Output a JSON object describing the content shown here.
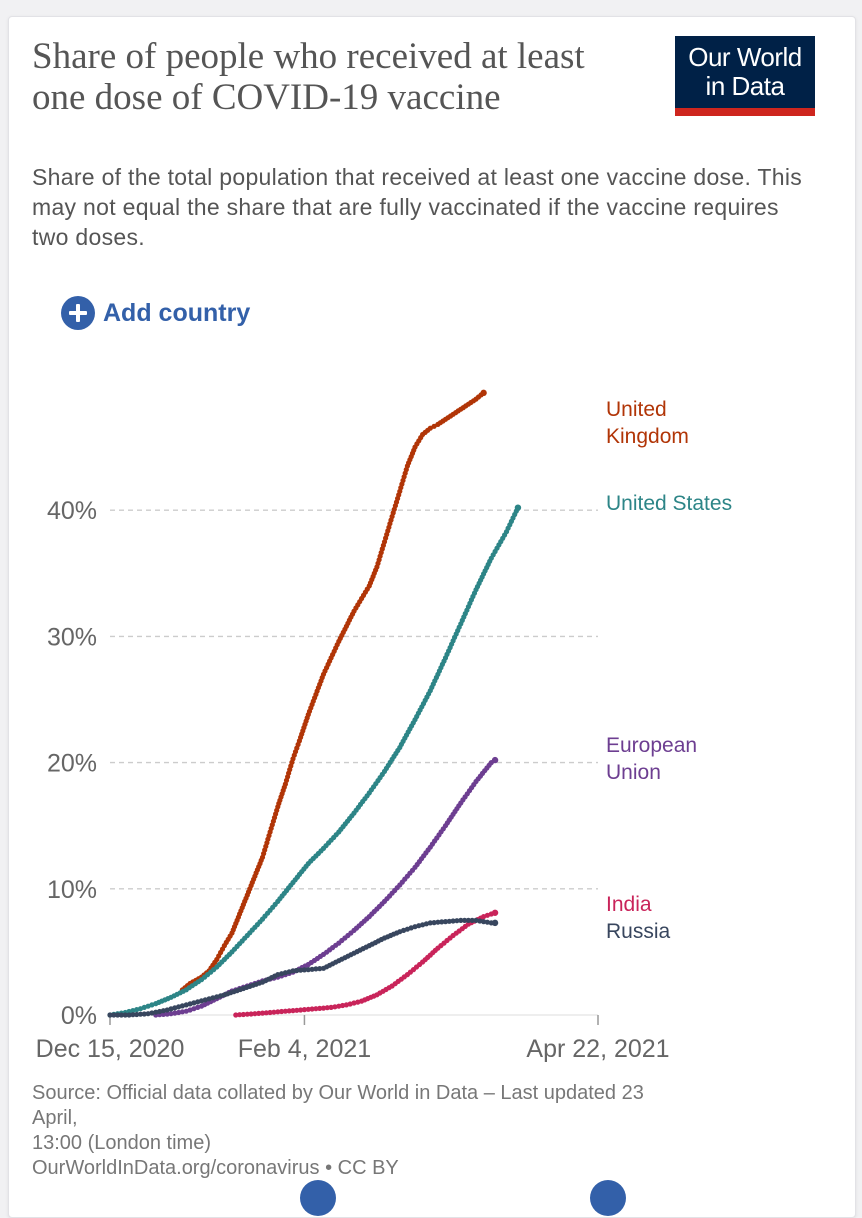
{
  "header": {
    "title": "Share of people who received at least one dose of COVID-19 vaccine",
    "subtitle": "Share of the total population that received at least one vaccine dose. This may not equal the share that are fully vaccinated if the vaccine requires two doses.",
    "logo_line1": "Our World",
    "logo_line2": "in Data",
    "logo_icon": "owid-logo"
  },
  "controls": {
    "add_country_label": "Add country",
    "add_icon": "plus-circle-icon"
  },
  "footer": {
    "source_line1": "Source: Official data collated by Our World in Data – Last updated 23",
    "source_line2": "April,",
    "source_line3": "13:00 (London time)",
    "source_url": "OurWorldInData.org/coronavirus",
    "license": "• CC BY"
  },
  "colors": {
    "uk": "#b13507",
    "us": "#2d8587",
    "eu": "#6d3e91",
    "india": "#c9245a",
    "russia": "#38465e",
    "grid": "#cccccc",
    "axis_text": "#666666",
    "accent": "#3360a9",
    "logo_bg": "#002147",
    "logo_stripe": "#ce261e"
  },
  "chart_data": {
    "type": "line",
    "title": "Share of people who received at least one dose of COVID-19 vaccine",
    "xlabel": "",
    "ylabel": "",
    "x_range_days": [
      0,
      128
    ],
    "x_ticks": [
      {
        "day": 0,
        "label": "Dec 15, 2020"
      },
      {
        "day": 51,
        "label": "Feb 4, 2021"
      },
      {
        "day": 128,
        "label": "Apr 22, 2021"
      }
    ],
    "ylim": [
      0,
      50
    ],
    "y_ticks": [
      {
        "value": 0,
        "label": "0%"
      },
      {
        "value": 10,
        "label": "10%"
      },
      {
        "value": 20,
        "label": "20%"
      },
      {
        "value": 30,
        "label": "30%"
      },
      {
        "value": 40,
        "label": "40%"
      }
    ],
    "grid": true,
    "series": [
      {
        "key": "uk",
        "name": "United Kingdom",
        "label_lines": [
          "United",
          "Kingdom"
        ],
        "color": "#b13507",
        "points": [
          [
            19,
            2
          ],
          [
            21,
            2.5
          ],
          [
            24,
            3
          ],
          [
            26,
            3.5
          ],
          [
            28,
            4.4
          ],
          [
            30,
            5.5
          ],
          [
            32,
            6.5
          ],
          [
            34,
            8
          ],
          [
            36,
            9.5
          ],
          [
            38,
            11
          ],
          [
            40,
            12.5
          ],
          [
            42,
            14.5
          ],
          [
            44,
            16.5
          ],
          [
            46,
            18.3
          ],
          [
            48,
            20.3
          ],
          [
            50,
            22
          ],
          [
            52,
            23.8
          ],
          [
            54,
            25.4
          ],
          [
            56,
            27
          ],
          [
            58,
            28.3
          ],
          [
            60,
            29.6
          ],
          [
            62,
            30.8
          ],
          [
            64,
            32
          ],
          [
            66,
            33
          ],
          [
            68,
            34
          ],
          [
            70,
            35.5
          ],
          [
            72,
            37.5
          ],
          [
            74,
            39.5
          ],
          [
            76,
            41.5
          ],
          [
            78,
            43.5
          ],
          [
            80,
            45
          ],
          [
            82,
            46
          ],
          [
            84,
            46.5
          ],
          [
            86,
            46.8
          ],
          [
            88,
            47.2
          ],
          [
            90,
            47.6
          ],
          [
            92,
            48
          ],
          [
            94,
            48.4
          ],
          [
            96,
            48.8
          ],
          [
            98,
            49.3
          ]
        ]
      },
      {
        "key": "us",
        "name": "United States",
        "label_lines": [
          "United States"
        ],
        "color": "#2d8587",
        "points": [
          [
            0,
            0
          ],
          [
            4,
            0.2
          ],
          [
            8,
            0.5
          ],
          [
            12,
            0.9
          ],
          [
            16,
            1.4
          ],
          [
            20,
            2
          ],
          [
            24,
            2.8
          ],
          [
            28,
            3.8
          ],
          [
            32,
            5
          ],
          [
            36,
            6.3
          ],
          [
            40,
            7.6
          ],
          [
            44,
            9
          ],
          [
            48,
            10.5
          ],
          [
            52,
            12
          ],
          [
            56,
            13.2
          ],
          [
            60,
            14.5
          ],
          [
            64,
            16
          ],
          [
            68,
            17.6
          ],
          [
            72,
            19.3
          ],
          [
            76,
            21.2
          ],
          [
            80,
            23.4
          ],
          [
            84,
            25.7
          ],
          [
            88,
            28.3
          ],
          [
            92,
            31
          ],
          [
            96,
            33.7
          ],
          [
            100,
            36.2
          ],
          [
            104,
            38.3
          ],
          [
            107,
            40.2
          ]
        ]
      },
      {
        "key": "eu",
        "name": "European Union",
        "label_lines": [
          "European",
          "Union"
        ],
        "color": "#6d3e91",
        "points": [
          [
            12,
            0
          ],
          [
            16,
            0.1
          ],
          [
            20,
            0.3
          ],
          [
            24,
            0.7
          ],
          [
            28,
            1.3
          ],
          [
            32,
            1.9
          ],
          [
            36,
            2.3
          ],
          [
            40,
            2.7
          ],
          [
            44,
            3
          ],
          [
            48,
            3.4
          ],
          [
            52,
            4
          ],
          [
            56,
            4.8
          ],
          [
            60,
            5.7
          ],
          [
            64,
            6.7
          ],
          [
            68,
            7.8
          ],
          [
            72,
            9
          ],
          [
            76,
            10.3
          ],
          [
            80,
            11.7
          ],
          [
            84,
            13.3
          ],
          [
            88,
            15
          ],
          [
            92,
            16.8
          ],
          [
            96,
            18.5
          ],
          [
            100,
            20
          ],
          [
            101,
            20.2
          ]
        ]
      },
      {
        "key": "india",
        "name": "India",
        "label_lines": [
          "India"
        ],
        "color": "#c9245a",
        "points": [
          [
            33,
            0
          ],
          [
            38,
            0.1
          ],
          [
            42,
            0.2
          ],
          [
            46,
            0.3
          ],
          [
            50,
            0.4
          ],
          [
            54,
            0.5
          ],
          [
            58,
            0.6
          ],
          [
            62,
            0.8
          ],
          [
            66,
            1.1
          ],
          [
            70,
            1.6
          ],
          [
            74,
            2.3
          ],
          [
            78,
            3.2
          ],
          [
            82,
            4.2
          ],
          [
            86,
            5.3
          ],
          [
            90,
            6.3
          ],
          [
            94,
            7.2
          ],
          [
            98,
            7.8
          ],
          [
            101,
            8.1
          ]
        ]
      },
      {
        "key": "russia",
        "name": "Russia",
        "label_lines": [
          "Russia"
        ],
        "color": "#38465e",
        "points": [
          [
            0,
            0
          ],
          [
            5,
            0
          ],
          [
            10,
            0.1
          ],
          [
            15,
            0.4
          ],
          [
            20,
            0.8
          ],
          [
            25,
            1.2
          ],
          [
            30,
            1.6
          ],
          [
            35,
            2.1
          ],
          [
            40,
            2.6
          ],
          [
            44,
            3.2
          ],
          [
            48,
            3.5
          ],
          [
            52,
            3.6
          ],
          [
            56,
            3.7
          ],
          [
            60,
            4.3
          ],
          [
            64,
            4.9
          ],
          [
            68,
            5.5
          ],
          [
            72,
            6.1
          ],
          [
            76,
            6.6
          ],
          [
            80,
            7
          ],
          [
            84,
            7.3
          ],
          [
            88,
            7.4
          ],
          [
            92,
            7.5
          ],
          [
            96,
            7.5
          ],
          [
            100,
            7.3
          ],
          [
            101,
            7.3
          ]
        ]
      }
    ]
  }
}
